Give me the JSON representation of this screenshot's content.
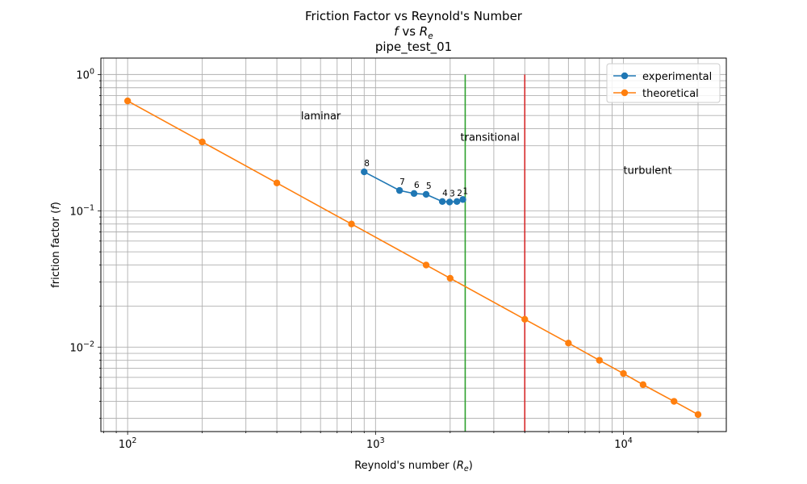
{
  "chart_data": {
    "type": "line",
    "title": "Friction Factor vs Reynold's Number",
    "subtitle_parts": [
      "f",
      " vs ",
      "R",
      "e"
    ],
    "test_name": "pipe_test_01",
    "xlabel_parts": [
      "Reynold's number (",
      "R",
      "e",
      ")"
    ],
    "ylabel_parts": [
      "friction factor (",
      "f",
      ")"
    ],
    "x_scale": "log",
    "y_scale": "log",
    "xlim": [
      78,
      26000
    ],
    "ylim": [
      0.0024,
      1.32
    ],
    "x_ticks": [
      {
        "value": 100,
        "base": "10",
        "exp": "2"
      },
      {
        "value": 1000,
        "base": "10",
        "exp": "3"
      },
      {
        "value": 10000,
        "base": "10",
        "exp": "4"
      }
    ],
    "y_ticks": [
      {
        "value": 1,
        "base": "10",
        "exp": "0"
      },
      {
        "value": 0.1,
        "base": "10",
        "exp": "−1"
      },
      {
        "value": 0.01,
        "base": "10",
        "exp": "−2"
      }
    ],
    "grid": true,
    "legend_position": "top-right",
    "series": [
      {
        "name": "experimental",
        "color": "#1f77b4",
        "x": [
          2250,
          2130,
          1990,
          1860,
          1600,
          1430,
          1250,
          900
        ],
        "y": [
          0.121,
          0.117,
          0.116,
          0.117,
          0.132,
          0.134,
          0.141,
          0.193
        ],
        "point_labels": [
          "1",
          "2",
          "3",
          "4",
          "5",
          "6",
          "7",
          "8"
        ]
      },
      {
        "name": "theoretical",
        "color": "#ff7f0e",
        "x": [
          100,
          200,
          400,
          800,
          1600,
          2000,
          4000,
          6000,
          8000,
          10000,
          12000,
          16000,
          20000
        ],
        "y": [
          0.64,
          0.32,
          0.16,
          0.08,
          0.04,
          0.032,
          0.016,
          0.0107,
          0.008,
          0.0064,
          0.0053,
          0.004,
          0.0032
        ]
      }
    ],
    "vertical_lines": [
      {
        "x": 2300,
        "y_from": 0.0024,
        "y_to": 1.0,
        "color": "#2ca02c"
      },
      {
        "x": 4000,
        "y_from": 0.0024,
        "y_to": 1.0,
        "color": "#d62728"
      }
    ],
    "annotations": [
      {
        "text": "laminar",
        "x": 500,
        "y": 0.5
      },
      {
        "text": "transitional",
        "x": 2200,
        "y": 0.35
      },
      {
        "text": "turbulent",
        "x": 10000,
        "y": 0.2
      }
    ]
  }
}
